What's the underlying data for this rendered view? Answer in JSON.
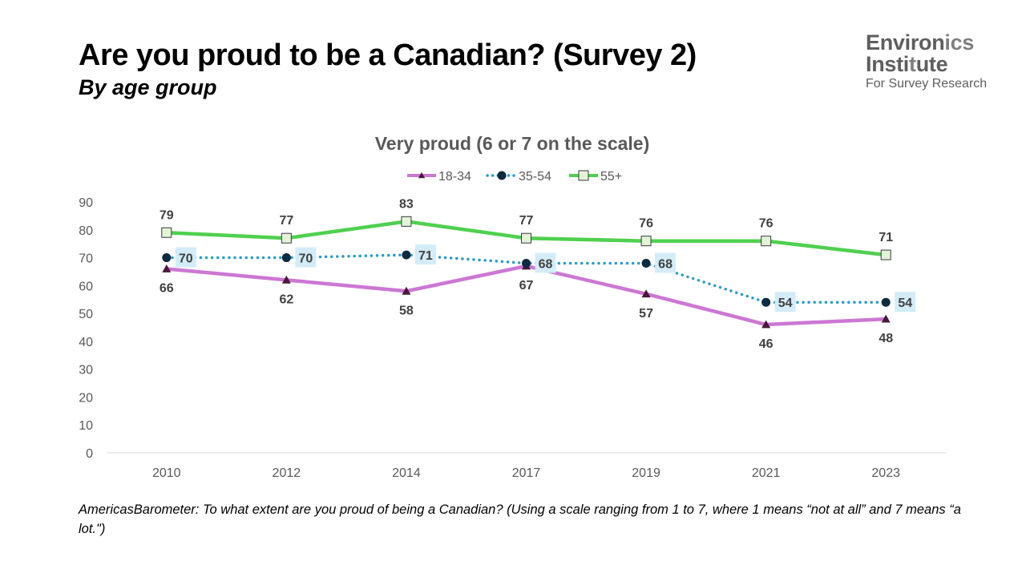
{
  "header": {
    "title": "Are you proud to be a Canadian? (Survey 2)",
    "subtitle": "By age group"
  },
  "logo": {
    "line1_a": "Environ",
    "line1_b": "ics",
    "line2_a": "Insti",
    "line2_b": "t",
    "line2_c": "ute",
    "line3": "For Survey Research"
  },
  "chart_data": {
    "type": "line",
    "title": "Very proud (6 or 7 on the scale)",
    "xlabel": "",
    "ylabel": "",
    "categories": [
      "2010",
      "2012",
      "2014",
      "2017",
      "2019",
      "2021",
      "2023"
    ],
    "ylim": [
      0,
      90
    ],
    "yticks": [
      0,
      10,
      20,
      30,
      40,
      50,
      60,
      70,
      80,
      90
    ],
    "grid": false,
    "legend_position": "top",
    "series": [
      {
        "name": "18-34",
        "values": [
          66,
          62,
          58,
          67,
          57,
          46,
          48
        ],
        "color": "#cc77d4",
        "marker": "triangle",
        "marker_color": "#4a1838",
        "line_style": "solid",
        "label_position": "below",
        "label_boxed": false
      },
      {
        "name": "35-54",
        "values": [
          70,
          70,
          71,
          68,
          68,
          54,
          54
        ],
        "color": "#2d9cc4",
        "marker": "circle",
        "marker_color": "#0d2b40",
        "line_style": "dotted",
        "label_position": "right",
        "label_boxed": true,
        "label_box_color": "#d3ecf7"
      },
      {
        "name": "55+",
        "values": [
          79,
          77,
          83,
          77,
          76,
          76,
          71
        ],
        "color": "#4fd04f",
        "marker": "square",
        "marker_color": "#e3f3d8",
        "line_style": "solid",
        "label_position": "above",
        "label_boxed": false
      }
    ]
  },
  "footnote": "AmericasBarometer: To what extent are you proud of being a Canadian? (Using a scale ranging from 1 to 7, where 1 means “not at all” and 7 means “a lot.\")"
}
